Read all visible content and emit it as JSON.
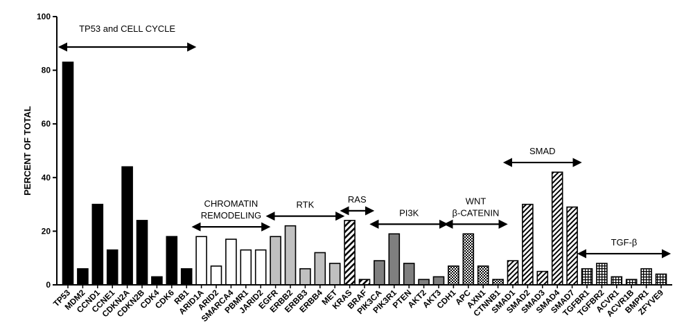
{
  "chart_data": {
    "type": "bar",
    "title": "",
    "xlabel": "",
    "ylabel": "PERCENT OF TOTAL",
    "ylim": [
      0,
      100
    ],
    "yticks": [
      0,
      20,
      40,
      60,
      80,
      100
    ],
    "grid": false,
    "categories": [
      "TP53",
      "MDM2",
      "CCND1",
      "CCNE1",
      "CDKN2A",
      "CDKN2B",
      "CDK4",
      "CDK6",
      "RB1",
      "ARID1A",
      "ARID2",
      "SMARCA4",
      "PBMR1",
      "JARID2",
      "EGFR",
      "ERBB2",
      "ERBB3",
      "ERBB4",
      "MET",
      "KRAS",
      "BRAF",
      "PIK3CA",
      "PIK3R1",
      "PTEN",
      "AKT2",
      "AKT3",
      "CDH1",
      "APC",
      "AXN1",
      "CTNNB1",
      "SMAD1",
      "SMAD2",
      "SMAD3",
      "SMAD4",
      "SMAD7",
      "TGFBR1",
      "TGFBR2",
      "ACVR1",
      "ACVR1B",
      "BMPR1",
      "ZFYVE9"
    ],
    "values": [
      83,
      6,
      30,
      13,
      44,
      24,
      3,
      18,
      6,
      18,
      7,
      17,
      13,
      13,
      18,
      22,
      6,
      12,
      8,
      24,
      2,
      9,
      19,
      8,
      2,
      3,
      7,
      19,
      7,
      2,
      9,
      30,
      5,
      42,
      29,
      6,
      8,
      3,
      2,
      6,
      4
    ],
    "groups": [
      {
        "name": "TP53 and CELL CYCLE",
        "lines": [
          "TP53 and CELL CYCLE"
        ],
        "start": 0,
        "end": 8,
        "pattern": "black"
      },
      {
        "name": "CHROMATIN REMODELING",
        "lines": [
          "CHROMATIN",
          "REMODELING"
        ],
        "start": 9,
        "end": 13,
        "pattern": "white"
      },
      {
        "name": "RTK",
        "lines": [
          "RTK"
        ],
        "start": 14,
        "end": 18,
        "pattern": "lightgray"
      },
      {
        "name": "RAS",
        "lines": [
          "RAS"
        ],
        "start": 19,
        "end": 20,
        "pattern": "hatch-wide"
      },
      {
        "name": "PI3K",
        "lines": [
          "PI3K"
        ],
        "start": 21,
        "end": 25,
        "pattern": "darkgray"
      },
      {
        "name": "WNT β-CATENIN",
        "lines": [
          "WNT",
          "β-CATENIN"
        ],
        "start": 26,
        "end": 29,
        "pattern": "checker"
      },
      {
        "name": "SMAD",
        "lines": [
          "SMAD"
        ],
        "start": 30,
        "end": 34,
        "pattern": "hatch-dense"
      },
      {
        "name": "TGF-β",
        "lines": [
          "TGF-β"
        ],
        "start": 35,
        "end": 40,
        "pattern": "grid"
      }
    ],
    "colors": {
      "axis": "#000000",
      "bar_black": "#000000",
      "bar_white": "#ffffff",
      "bar_lightgray": "#c0c0c0",
      "bar_darkgray": "#7f7f7f"
    }
  }
}
